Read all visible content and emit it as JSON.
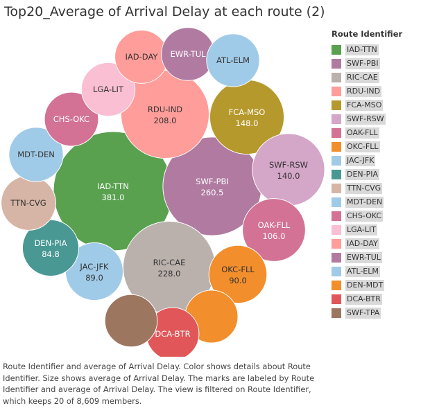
{
  "title": "Top20_Average of Arrival Delay at each route (2)",
  "legend": {
    "title": "Route Identifier",
    "items": [
      {
        "label": "IAD-TTN",
        "color": "#59a14f"
      },
      {
        "label": "SWF-PBI",
        "color": "#b07aa1"
      },
      {
        "label": "RIC-CAE",
        "color": "#bab0ac"
      },
      {
        "label": "RDU-IND",
        "color": "#ff9d9a"
      },
      {
        "label": "FCA-MSO",
        "color": "#b6992d"
      },
      {
        "label": "SWF-RSW",
        "color": "#d4a6c8"
      },
      {
        "label": "OAK-FLL",
        "color": "#d37295"
      },
      {
        "label": "OKC-FLL",
        "color": "#f28e2b"
      },
      {
        "label": "JAC-JFK",
        "color": "#a0cbe8"
      },
      {
        "label": "DEN-PIA",
        "color": "#499894"
      },
      {
        "label": "TTN-CVG",
        "color": "#d7b5a6"
      },
      {
        "label": "MDT-DEN",
        "color": "#a0cbe8"
      },
      {
        "label": "CHS-OKC",
        "color": "#d37295"
      },
      {
        "label": "LGA-LIT",
        "color": "#fabfd2"
      },
      {
        "label": "IAD-DAY",
        "color": "#ff9d9a"
      },
      {
        "label": "EWR-TUL",
        "color": "#b07aa1"
      },
      {
        "label": "ATL-ELM",
        "color": "#a0cbe8"
      },
      {
        "label": "DEN-MDT",
        "color": "#f28e2b"
      },
      {
        "label": "DCA-BTR",
        "color": "#e15759"
      },
      {
        "label": "SWF-TPA",
        "color": "#9d7660"
      }
    ]
  },
  "caption": "Route Identifier and average of Arrival Delay.  Color shows details about Route Identifier.  Size shows average of Arrival Delay.  The marks are labeled by Route Identifier and average of Arrival Delay. The view is filtered on Route Identifier, which keeps 20 of 8,609 members.",
  "chart_data": {
    "type": "bubble",
    "size_measure": "average of Arrival Delay",
    "bubbles": [
      {
        "route": "IAD-TTN",
        "value": 381.0,
        "value_label": "381.0",
        "show_name": true,
        "color": "#59a14f"
      },
      {
        "route": "SWF-PBI",
        "value": 260.5,
        "value_label": "260.5",
        "show_name": true,
        "color": "#b07aa1"
      },
      {
        "route": "RIC-CAE",
        "value": 228.0,
        "value_label": "228.0",
        "show_name": true,
        "color": "#bab0ac"
      },
      {
        "route": "RDU-IND",
        "value": 208.0,
        "value_label": "208.0",
        "show_name": true,
        "color": "#ff9d9a"
      },
      {
        "route": "FCA-MSO",
        "value": 148.0,
        "value_label": "148.0",
        "show_name": true,
        "color": "#b6992d"
      },
      {
        "route": "SWF-RSW",
        "value": 140.0,
        "value_label": "140.0",
        "show_name": true,
        "color": "#d4a6c8"
      },
      {
        "route": "OAK-FLL",
        "value": 106.0,
        "value_label": "106.0",
        "show_name": true,
        "color": "#d37295"
      },
      {
        "route": "OKC-FLL",
        "value": 90.0,
        "value_label": "90.0",
        "show_name": true,
        "color": "#f28e2b"
      },
      {
        "route": "JAC-JFK",
        "value": 89.0,
        "value_label": "89.0",
        "show_name": true,
        "color": "#a0cbe8"
      },
      {
        "route": "DEN-PIA",
        "value": 84.8,
        "value_label": "84.8",
        "show_name": true,
        "color": "#499894"
      },
      {
        "route": "TTN-CVG",
        "value": 80.0,
        "value_label": null,
        "show_name": true,
        "color": "#d7b5a6"
      },
      {
        "route": "MDT-DEN",
        "value": 79.0,
        "value_label": null,
        "show_name": true,
        "color": "#a0cbe8"
      },
      {
        "route": "CHS-OKC",
        "value": 78.0,
        "value_label": null,
        "show_name": true,
        "color": "#d37295"
      },
      {
        "route": "LGA-LIT",
        "value": 77.0,
        "value_label": null,
        "show_name": true,
        "color": "#fabfd2"
      },
      {
        "route": "IAD-DAY",
        "value": 76.0,
        "value_label": null,
        "show_name": true,
        "color": "#ff9d9a"
      },
      {
        "route": "EWR-TUL",
        "value": 75.5,
        "value_label": null,
        "show_name": true,
        "color": "#b07aa1"
      },
      {
        "route": "ATL-ELM",
        "value": 75.0,
        "value_label": null,
        "show_name": true,
        "color": "#a0cbe8"
      },
      {
        "route": "DEN-MDT",
        "value": 74.5,
        "value_label": null,
        "show_name": false,
        "color": "#f28e2b"
      },
      {
        "route": "DCA-BTR",
        "value": 74.0,
        "value_label": null,
        "show_name": true,
        "color": "#e15759"
      },
      {
        "route": "SWF-TPA",
        "value": 73.5,
        "value_label": null,
        "show_name": false,
        "color": "#9d7660"
      }
    ]
  }
}
